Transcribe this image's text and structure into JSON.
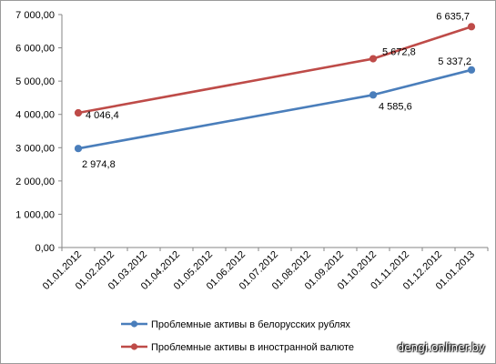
{
  "chart_data": {
    "type": "line",
    "categories": [
      "01.01.2012",
      "01.02.2012",
      "01.03.2012",
      "01.04.2012",
      "01.05.2012",
      "01.06.2012",
      "01.07.2012",
      "01.08.2012",
      "01.09.2012",
      "01.10.2012",
      "01.11.2012",
      "01.12.2012",
      "01.01.2013"
    ],
    "y_ticks": [
      "0,00",
      "1 000,00",
      "2 000,00",
      "3 000,00",
      "4 000,00",
      "5 000,00",
      "6 000,00",
      "7 000,00"
    ],
    "ylim": [
      0,
      7000
    ],
    "grid": false,
    "legend_position": "bottom",
    "series": [
      {
        "name": "Проблемные активы в белорусских рублях",
        "color": "#4a7ebb",
        "points": [
          {
            "category": "01.01.2012",
            "value": 2974.8,
            "label": "2 974,8"
          },
          {
            "category": "01.10.2012",
            "value": 4585.6,
            "label": "4 585,6"
          },
          {
            "category": "01.01.2013",
            "value": 5337.2,
            "label": "5 337,2"
          }
        ]
      },
      {
        "name": "Проблемные активы в иностранной валюте",
        "color": "#be4b48",
        "points": [
          {
            "category": "01.01.2012",
            "value": 4046.4,
            "label": "4 046,4"
          },
          {
            "category": "01.10.2012",
            "value": 5672.8,
            "label": "5 672,8"
          },
          {
            "category": "01.01.2013",
            "value": 6635.7,
            "label": "6 635,7"
          }
        ]
      }
    ]
  },
  "watermark": "dengi.onliner.by"
}
